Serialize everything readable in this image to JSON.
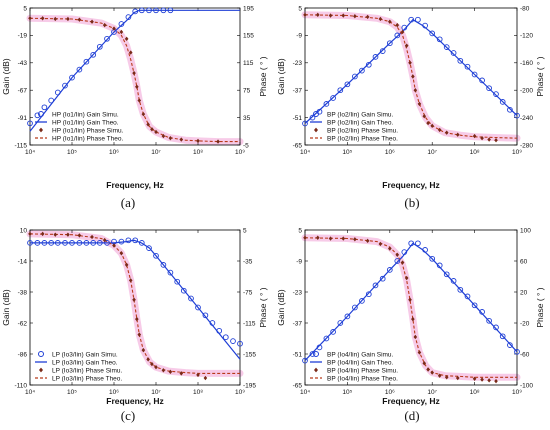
{
  "colors": {
    "gain": "#1f3fd6",
    "phase_line": "#b83a1a",
    "phase_marker": "#7a2a18",
    "highlight": "#f4b9e0"
  },
  "chart_data": [
    {
      "type": "line",
      "panel_label": "(a)",
      "xlabel": "Frequency, Hz",
      "ylabel": "Gain (dB)",
      "y2label": "Phase ( ° )",
      "x_scale": "log",
      "xlim": [
        10000,
        1000000000
      ],
      "x_ticks": [
        10000,
        100000,
        1000000,
        10000000,
        100000000,
        1000000000
      ],
      "x_tick_labels": [
        "10⁴",
        "10⁵",
        "10⁶",
        "10⁷",
        "10⁸",
        "10⁹"
      ],
      "ylim": [
        -115,
        5
      ],
      "y_ticks": [
        5,
        -19,
        -43,
        -67,
        -91,
        -115
      ],
      "y2lim": [
        -5,
        195
      ],
      "y2_ticks": [
        195,
        155,
        115,
        75,
        35,
        -5
      ],
      "legend_position": "bottom-left",
      "legend": [
        {
          "label": "HP (Io1/Iin) Gain Simu.",
          "style": "gain-marker"
        },
        {
          "label": "HP (Io1/Iin) Gain Theo.",
          "style": "gain-line"
        },
        {
          "label": "HP (Io1/Iin) Phase Simu.",
          "style": "phase-marker"
        },
        {
          "label": "HP (Io1/Iin) Phase Theo.",
          "style": "phase-line"
        }
      ],
      "series": [
        {
          "legend_index": 0,
          "axis": "left",
          "x": [
            10000,
            15000,
            22000,
            32000,
            46000,
            68000,
            100000,
            150000,
            220000,
            320000,
            460000,
            680000,
            1000000,
            1500000,
            2200000,
            3200000,
            4600000,
            6800000,
            10000000,
            15000000,
            22000000
          ],
          "y": [
            -96,
            -89,
            -82,
            -76,
            -69,
            -63,
            -56,
            -49,
            -42,
            -36,
            -29,
            -22,
            -16,
            -9,
            -3,
            2,
            3,
            3,
            3,
            3,
            3
          ]
        },
        {
          "legend_index": 1,
          "axis": "left",
          "x": [
            10000,
            100000,
            1000000,
            2000000,
            3000000,
            4000000,
            6000000,
            10000000,
            100000000,
            1000000000
          ],
          "y": [
            -103,
            -56,
            -16,
            -6,
            1,
            3,
            3,
            3,
            3,
            3
          ]
        },
        {
          "legend_index": 2,
          "axis": "right",
          "x": [
            10000,
            20000,
            40000,
            80000,
            150000,
            300000,
            600000,
            1000000,
            1500000,
            2000000,
            2500000,
            3000000,
            3500000,
            4000000,
            5000000,
            6500000,
            8000000,
            10000000,
            15000000,
            22000000,
            40000000,
            100000000,
            300000000
          ],
          "y": [
            180,
            180,
            179,
            179,
            178,
            175,
            170,
            165,
            160,
            150,
            130,
            100,
            80,
            60,
            40,
            25,
            18,
            14,
            8,
            5,
            3,
            1,
            0
          ]
        },
        {
          "legend_index": 3,
          "axis": "right",
          "x": [
            10000,
            100000,
            500000,
            1000000,
            1500000,
            2000000,
            2500000,
            3000000,
            3500000,
            4000000,
            5000000,
            7000000,
            10000000,
            20000000,
            50000000,
            100000000,
            300000000,
            1000000000
          ],
          "y": [
            180,
            179,
            173,
            165,
            155,
            140,
            120,
            100,
            80,
            60,
            40,
            22,
            14,
            6,
            2,
            1,
            0,
            0
          ]
        }
      ]
    },
    {
      "type": "line",
      "panel_label": "(b)",
      "xlabel": "Frequency, Hz",
      "ylabel": "Gain (dB)",
      "y2label": "Phase ( ° )",
      "x_scale": "log",
      "xlim": [
        10000,
        1000000000
      ],
      "x_ticks": [
        10000,
        100000,
        1000000,
        10000000,
        100000000,
        1000000000
      ],
      "x_tick_labels": [
        "10⁴",
        "10⁵",
        "10⁶",
        "10⁷",
        "10⁸",
        "10⁹"
      ],
      "ylim": [
        -65,
        5
      ],
      "y_ticks": [
        5,
        -9,
        -23,
        -37,
        -51,
        -65
      ],
      "y2lim": [
        -280,
        -80
      ],
      "y2_ticks": [
        -80,
        -120,
        -160,
        -200,
        -240,
        -280
      ],
      "legend_position": "bottom-left",
      "legend": [
        {
          "label": "BP (Io2/Iin) Gain Simu.",
          "style": "gain-marker"
        },
        {
          "label": "BP (Io2/Iin) Gain Theo.",
          "style": "gain-line"
        },
        {
          "label": "BP (Io2/Iin) Phase Simu.",
          "style": "phase-marker"
        },
        {
          "label": "BP (Io2/Iin) Phase Theo.",
          "style": "phase-line"
        }
      ],
      "series": [
        {
          "legend_index": 0,
          "axis": "left",
          "x": [
            10000,
            15000,
            22000,
            32000,
            46000,
            68000,
            100000,
            150000,
            220000,
            320000,
            460000,
            680000,
            1000000,
            1500000,
            2200000,
            3200000,
            4600000,
            6800000,
            10000000,
            15000000,
            22000000,
            32000000,
            46000000,
            68000000,
            100000000,
            150000000,
            220000000,
            320000000,
            460000000,
            680000000,
            1000000000
          ],
          "y": [
            -54,
            -51,
            -48,
            -44,
            -41,
            -37,
            -34,
            -30,
            -27,
            -24,
            -20,
            -17,
            -13,
            -9,
            -5,
            -1,
            -1,
            -4,
            -8,
            -11,
            -15,
            -18,
            -22,
            -25,
            -29,
            -32,
            -36,
            -39,
            -43,
            -47,
            -50
          ]
        },
        {
          "legend_index": 1,
          "axis": "left",
          "x": [
            10000,
            100000,
            1000000,
            2000000,
            3500000,
            6000000,
            10000000,
            100000000,
            1000000000
          ],
          "y": [
            -54,
            -34,
            -13,
            -7,
            -1,
            -4,
            -8,
            -29,
            -50
          ]
        },
        {
          "legend_index": 2,
          "axis": "right",
          "x": [
            10000,
            20000,
            40000,
            80000,
            150000,
            300000,
            600000,
            1000000,
            1500000,
            2000000,
            2500000,
            3000000,
            3500000,
            4000000,
            5000000,
            6500000,
            8000000,
            10000000,
            15000000,
            22000000,
            40000000,
            100000000,
            150000000,
            220000000,
            320000000
          ],
          "y": [
            -90,
            -90,
            -91,
            -91,
            -92,
            -93,
            -96,
            -100,
            -105,
            -115,
            -135,
            -160,
            -180,
            -200,
            -220,
            -238,
            -248,
            -252,
            -258,
            -262,
            -265,
            -267,
            -270,
            -272,
            -273
          ]
        },
        {
          "legend_index": 3,
          "axis": "right",
          "x": [
            10000,
            100000,
            500000,
            1000000,
            1500000,
            2000000,
            2500000,
            3000000,
            3500000,
            4000000,
            5000000,
            7000000,
            10000000,
            20000000,
            50000000,
            100000000,
            300000000,
            1000000000
          ],
          "y": [
            -90,
            -91,
            -95,
            -100,
            -108,
            -120,
            -140,
            -160,
            -180,
            -200,
            -220,
            -240,
            -252,
            -262,
            -266,
            -268,
            -269,
            -270
          ]
        }
      ]
    },
    {
      "type": "line",
      "panel_label": "(c)",
      "xlabel": "Frequency, Hz",
      "ylabel": "Gain (dB)",
      "y2label": "Phase ( ° )",
      "x_scale": "log",
      "xlim": [
        10000,
        1000000000
      ],
      "x_ticks": [
        10000,
        100000,
        1000000,
        10000000,
        100000000,
        1000000000
      ],
      "x_tick_labels": [
        "10⁴",
        "10⁵",
        "10⁶",
        "10⁷",
        "10⁸",
        "10⁹"
      ],
      "ylim": [
        -110,
        10
      ],
      "y_ticks": [
        10,
        -14,
        -38,
        -62,
        -86,
        -110
      ],
      "y2lim": [
        -195,
        5
      ],
      "y2_ticks": [
        5,
        -35,
        -75,
        -115,
        -155,
        -195
      ],
      "legend_position": "bottom-left",
      "legend": [
        {
          "label": "LP (Io3/Iin) Gain Simu.",
          "style": "gain-marker"
        },
        {
          "label": "LP (Io3/Iin) Gain Theo.",
          "style": "gain-line"
        },
        {
          "label": "LP (Io3/Iin) Phase Simu.",
          "style": "phase-marker"
        },
        {
          "label": "LP (Io3/Iin) Phase Theo.",
          "style": "phase-line"
        }
      ],
      "series": [
        {
          "legend_index": 0,
          "axis": "left",
          "x": [
            10000,
            15000,
            22000,
            32000,
            46000,
            68000,
            100000,
            150000,
            220000,
            320000,
            460000,
            680000,
            1000000,
            1500000,
            2200000,
            3200000,
            4600000,
            6800000,
            10000000,
            15000000,
            22000000,
            32000000,
            46000000,
            68000000,
            100000000,
            150000000,
            220000000,
            320000000,
            460000000,
            680000000,
            1000000000
          ],
          "y": [
            0,
            0,
            0,
            0,
            0,
            0,
            0,
            0,
            0,
            0,
            0,
            0,
            1,
            1,
            2,
            2,
            0,
            -4,
            -10,
            -17,
            -23,
            -30,
            -37,
            -43,
            -50,
            -56,
            -62,
            -68,
            -73,
            -76,
            -78
          ]
        },
        {
          "legend_index": 1,
          "axis": "left",
          "x": [
            10000,
            1000000,
            2000000,
            3000000,
            4500000,
            7000000,
            10000000,
            100000000,
            1000000000
          ],
          "y": [
            0,
            0,
            1,
            2,
            0,
            -4,
            -10,
            -50,
            -90
          ]
        },
        {
          "legend_index": 2,
          "axis": "right",
          "x": [
            10000,
            20000,
            40000,
            80000,
            150000,
            300000,
            600000,
            1000000,
            1500000,
            2000000,
            2500000,
            3000000,
            3500000,
            4000000,
            5000000,
            6500000,
            8000000,
            10000000,
            15000000,
            22000000,
            40000000,
            100000000,
            150000000
          ],
          "y": [
            0,
            0,
            -1,
            -1,
            -2,
            -4,
            -8,
            -15,
            -25,
            -40,
            -60,
            -85,
            -110,
            -130,
            -150,
            -162,
            -168,
            -172,
            -176,
            -178,
            -180,
            -182,
            -186
          ]
        },
        {
          "legend_index": 3,
          "axis": "right",
          "x": [
            10000,
            100000,
            500000,
            1000000,
            1500000,
            2000000,
            2500000,
            3000000,
            3500000,
            4000000,
            5000000,
            7000000,
            10000000,
            20000000,
            50000000,
            100000000,
            300000000,
            1000000000
          ],
          "y": [
            0,
            -1,
            -6,
            -15,
            -25,
            -40,
            -60,
            -85,
            -110,
            -130,
            -150,
            -165,
            -172,
            -177,
            -179,
            -180,
            -180,
            -180
          ]
        }
      ]
    },
    {
      "type": "line",
      "panel_label": "(d)",
      "xlabel": "Frequency, Hz",
      "ylabel": "Gain (dB)",
      "y2label": "Phase ( ° )",
      "x_scale": "log",
      "xlim": [
        10000,
        1000000000
      ],
      "x_ticks": [
        10000,
        100000,
        1000000,
        10000000,
        100000000,
        1000000000
      ],
      "x_tick_labels": [
        "10⁴",
        "10⁵",
        "10⁶",
        "10⁷",
        "10⁸",
        "10⁹"
      ],
      "ylim": [
        -65,
        5
      ],
      "y_ticks": [
        5,
        -9,
        -23,
        -37,
        -51,
        -65
      ],
      "y2lim": [
        -100,
        100
      ],
      "y2_ticks": [
        100,
        60,
        20,
        -20,
        -60,
        -100
      ],
      "legend_position": "bottom-left",
      "legend": [
        {
          "label": "BP (Io4/Iin) Gain Simu.",
          "style": "gain-marker"
        },
        {
          "label": "BP (Io4/Iin) Gain Theo.",
          "style": "gain-line"
        },
        {
          "label": "BP (Io4/Iin) Phase Simu.",
          "style": "phase-marker"
        },
        {
          "label": "BP (Io4/Iin) Phase Theo.",
          "style": "phase-line"
        }
      ],
      "series": [
        {
          "legend_index": 0,
          "axis": "left",
          "x": [
            10000,
            15000,
            22000,
            32000,
            46000,
            68000,
            100000,
            150000,
            220000,
            320000,
            460000,
            680000,
            1000000,
            1500000,
            2200000,
            3200000,
            4600000,
            6800000,
            10000000,
            15000000,
            22000000,
            32000000,
            46000000,
            68000000,
            100000000,
            150000000,
            220000000,
            320000000,
            460000000,
            680000000,
            1000000000
          ],
          "y": [
            -54,
            -51,
            -48,
            -44,
            -41,
            -37,
            -34,
            -30,
            -27,
            -24,
            -20,
            -17,
            -13,
            -9,
            -5,
            -1,
            -1,
            -4,
            -8,
            -11,
            -15,
            -18,
            -22,
            -25,
            -29,
            -32,
            -36,
            -39,
            -43,
            -47,
            -50
          ]
        },
        {
          "legend_index": 1,
          "axis": "left",
          "x": [
            10000,
            100000,
            1000000,
            2000000,
            3500000,
            6000000,
            10000000,
            100000000,
            1000000000
          ],
          "y": [
            -54,
            -34,
            -13,
            -7,
            -1,
            -4,
            -8,
            -29,
            -50
          ]
        },
        {
          "legend_index": 2,
          "axis": "right",
          "x": [
            10000,
            20000,
            40000,
            80000,
            150000,
            300000,
            600000,
            1000000,
            1500000,
            2000000,
            2500000,
            3000000,
            3500000,
            4000000,
            5000000,
            6500000,
            8000000,
            10000000,
            15000000,
            22000000,
            40000000,
            100000000,
            150000000,
            220000000,
            320000000
          ],
          "y": [
            90,
            90,
            89,
            89,
            88,
            86,
            82,
            76,
            68,
            58,
            38,
            10,
            -15,
            -38,
            -58,
            -72,
            -80,
            -84,
            -88,
            -90,
            -91,
            -92,
            -93,
            -94,
            -95
          ]
        },
        {
          "legend_index": 3,
          "axis": "right",
          "x": [
            10000,
            100000,
            500000,
            1000000,
            1500000,
            2000000,
            2500000,
            3000000,
            3500000,
            4000000,
            5000000,
            7000000,
            10000000,
            20000000,
            50000000,
            100000000,
            300000000,
            1000000000
          ],
          "y": [
            90,
            89,
            85,
            78,
            68,
            55,
            35,
            10,
            -15,
            -38,
            -58,
            -75,
            -84,
            -88,
            -89,
            -90,
            -90,
            -90
          ]
        }
      ]
    }
  ]
}
